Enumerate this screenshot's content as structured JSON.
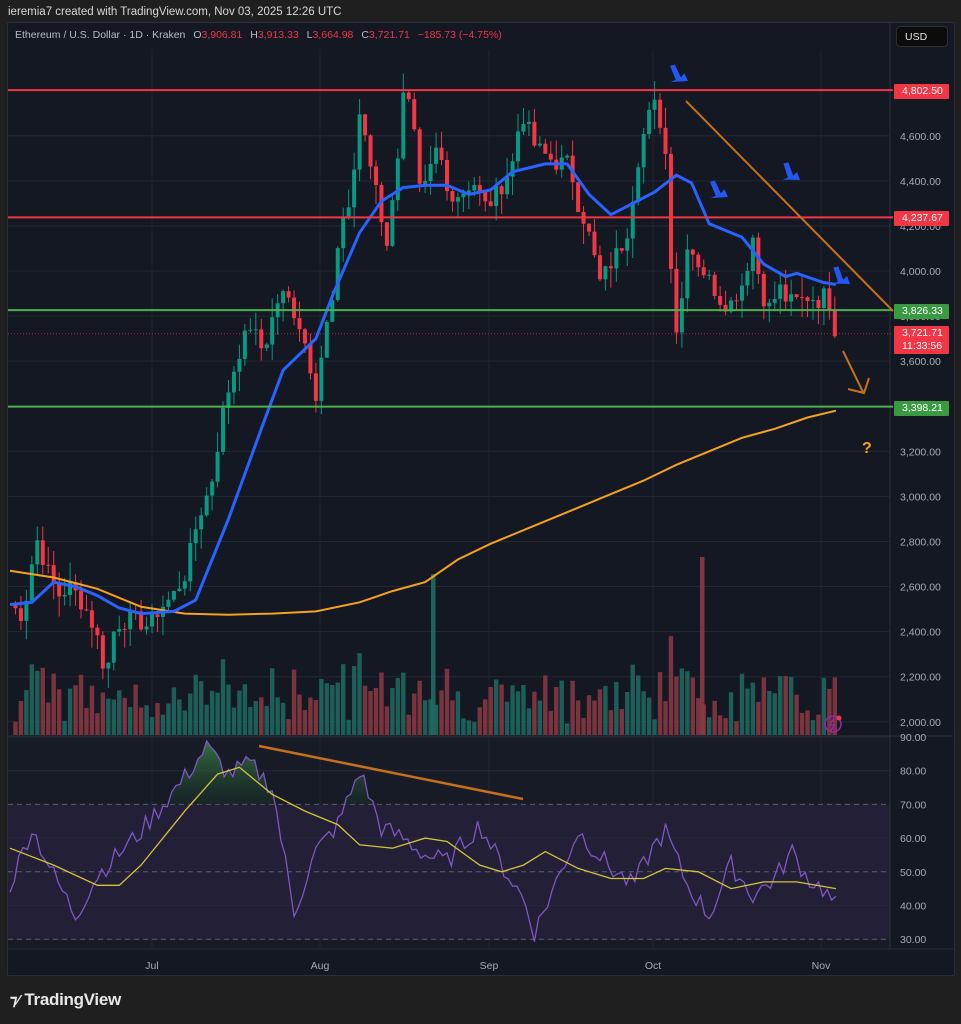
{
  "header": {
    "attribution": "ieremia7 created with TradingView.com, Nov 03, 2025 12:26 UTC"
  },
  "legend": {
    "symbol": "Ethereum / U.S. Dollar · 1D · Kraken",
    "open_label": "O",
    "open": "3,906.81",
    "high_label": "H",
    "high": "3,913.33",
    "low_label": "L",
    "low": "3,664.98",
    "close_label": "C",
    "close": "3,721.71",
    "change": "−185.73 (−4.75%)"
  },
  "currency_button": {
    "label": "USD"
  },
  "price_tags": {
    "resistance_top": "4,802.50",
    "resistance_mid": "4,237.67",
    "support_mid": "3,826.33",
    "last_price": "3,721.71",
    "countdown": "11:33:56",
    "support_low": "3,398.21"
  },
  "annotation": {
    "question_mark": "?"
  },
  "brand": {
    "logo_text": "TradingView"
  },
  "colors": {
    "up": "#089981",
    "down": "#f23645",
    "ema_fast": "#2962ff",
    "ma_slow": "#f7a21b",
    "hline_red": "#f23645",
    "hline_green": "#4caf50",
    "trendline": "#c6711a",
    "rsi": "#7e57c2",
    "rsi_ma": "#d4c43a"
  },
  "chart_data": [
    {
      "type": "candlestick",
      "title": "Ethereum / U.S. Dollar · 1D · Kraken",
      "price_axis": {
        "ticks": [
          2000,
          2200,
          2400,
          2600,
          2800,
          3000,
          3200,
          3400,
          3600,
          3800,
          4000,
          4200,
          4400,
          4600
        ],
        "range": [
          1960,
          4960
        ]
      },
      "time_axis": {
        "labels": [
          "Jul",
          "Aug",
          "Sep",
          "Oct",
          "Nov"
        ]
      },
      "horizontal_levels": [
        {
          "price": 4802.5,
          "color": "red"
        },
        {
          "price": 4237.67,
          "color": "red"
        },
        {
          "price": 3826.33,
          "color": "green"
        },
        {
          "price": 3398.21,
          "color": "green"
        }
      ],
      "last": {
        "open": 3906.81,
        "high": 3913.33,
        "low": 3664.98,
        "close": 3721.71,
        "change": -185.73,
        "change_pct": -4.75
      },
      "series": [
        {
          "name": "EMA (fast, blue)",
          "points": [
            [
              0,
              2520
            ],
            [
              10,
              2530
            ],
            [
              20,
              2620
            ],
            [
              30,
              2600
            ],
            [
              40,
              2560
            ],
            [
              50,
              2505
            ],
            [
              60,
              2480
            ],
            [
              75,
              2490
            ],
            [
              85,
              2540
            ],
            [
              100,
              2900
            ],
            [
              115,
              3300
            ],
            [
              125,
              3560
            ],
            [
              140,
              3700
            ],
            [
              148,
              3900
            ],
            [
              160,
              4170
            ],
            [
              170,
              4310
            ],
            [
              180,
              4370
            ],
            [
              190,
              4380
            ],
            [
              200,
              4380
            ],
            [
              210,
              4340
            ],
            [
              220,
              4360
            ],
            [
              230,
              4440
            ],
            [
              245,
              4475
            ],
            [
              255,
              4475
            ],
            [
              265,
              4340
            ],
            [
              275,
              4250
            ],
            [
              285,
              4300
            ],
            [
              295,
              4350
            ],
            [
              305,
              4425
            ],
            [
              312,
              4390
            ],
            [
              320,
              4210
            ],
            [
              335,
              4150
            ],
            [
              345,
              4030
            ],
            [
              355,
              3975
            ],
            [
              360,
              3990
            ],
            [
              372,
              3950
            ],
            [
              378,
              3940
            ]
          ]
        },
        {
          "name": "MA (slow, orange)",
          "points": [
            [
              0,
              2670
            ],
            [
              20,
              2640
            ],
            [
              40,
              2590
            ],
            [
              60,
              2510
            ],
            [
              80,
              2480
            ],
            [
              100,
              2475
            ],
            [
              120,
              2480
            ],
            [
              140,
              2490
            ],
            [
              160,
              2530
            ],
            [
              175,
              2580
            ],
            [
              190,
              2620
            ],
            [
              205,
              2720
            ],
            [
              220,
              2790
            ],
            [
              240,
              2870
            ],
            [
              260,
              2950
            ],
            [
              275,
              3010
            ],
            [
              290,
              3070
            ],
            [
              305,
              3140
            ],
            [
              320,
              3200
            ],
            [
              335,
              3260
            ],
            [
              350,
              3300
            ],
            [
              365,
              3350
            ],
            [
              378,
              3380
            ]
          ]
        }
      ],
      "annotations": [
        "descending trendline from Oct high (~4,760) to ~3,826",
        "blue arrows pointing at lower highs",
        "orange arrow pointing down toward 3,398",
        "question mark near 200-day MA"
      ]
    },
    {
      "type": "bar",
      "title": "Volume",
      "note": "Largest spikes: mid-Aug (green), Oct 10 (red)"
    },
    {
      "type": "line",
      "title": "RSI",
      "y_axis": {
        "ticks": [
          30,
          40,
          50,
          60,
          70,
          80,
          90
        ],
        "overbought": 70,
        "middle": 50,
        "oversold": 30
      },
      "series": [
        {
          "name": "RSI",
          "approx": [
            [
              0,
              46
            ],
            [
              10,
              63
            ],
            [
              20,
              49
            ],
            [
              30,
              37
            ],
            [
              40,
              49
            ],
            [
              60,
              62
            ],
            [
              80,
              78
            ],
            [
              90,
              87
            ],
            [
              100,
              79
            ],
            [
              110,
              82
            ],
            [
              120,
              75
            ],
            [
              130,
              38
            ],
            [
              140,
              56
            ],
            [
              150,
              64
            ],
            [
              160,
              80
            ],
            [
              170,
              63
            ],
            [
              180,
              60
            ],
            [
              190,
              55
            ],
            [
              200,
              53
            ],
            [
              215,
              64
            ],
            [
              225,
              52
            ],
            [
              235,
              42
            ],
            [
              240,
              32
            ],
            [
              250,
              47
            ],
            [
              260,
              62
            ],
            [
              275,
              51
            ],
            [
              285,
              46
            ],
            [
              295,
              58
            ],
            [
              300,
              62
            ],
            [
              310,
              46
            ],
            [
              320,
              37
            ],
            [
              330,
              52
            ],
            [
              340,
              43
            ],
            [
              350,
              48
            ],
            [
              358,
              56
            ],
            [
              365,
              48
            ],
            [
              372,
              45
            ],
            [
              378,
              40
            ]
          ]
        },
        {
          "name": "RSI MA",
          "approx": [
            [
              0,
              57
            ],
            [
              20,
              52
            ],
            [
              40,
              46
            ],
            [
              50,
              46
            ],
            [
              60,
              52
            ],
            [
              80,
              68
            ],
            [
              95,
              79
            ],
            [
              105,
              81
            ],
            [
              120,
              73
            ],
            [
              135,
              68
            ],
            [
              150,
              64
            ],
            [
              160,
              58
            ],
            [
              175,
              57
            ],
            [
              190,
              60
            ],
            [
              200,
              59
            ],
            [
              215,
              52
            ],
            [
              225,
              50
            ],
            [
              235,
              52
            ],
            [
              245,
              56
            ],
            [
              260,
              51
            ],
            [
              275,
              48
            ],
            [
              290,
              48
            ],
            [
              300,
              51
            ],
            [
              315,
              50
            ],
            [
              330,
              45
            ],
            [
              345,
              47
            ],
            [
              360,
              47
            ],
            [
              378,
              45
            ]
          ]
        }
      ],
      "annotations": [
        "bearish divergence trendline connecting RSI peaks (~87 → ~74)"
      ]
    }
  ]
}
